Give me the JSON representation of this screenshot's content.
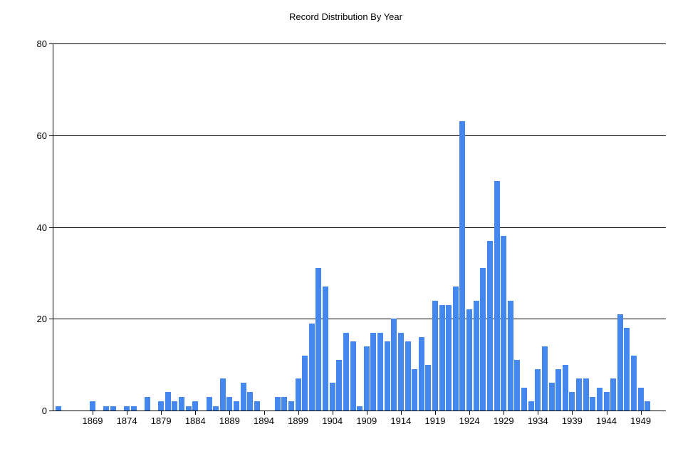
{
  "chart_data": {
    "type": "bar",
    "title": "Record Distribution By Year",
    "xlabel": "",
    "ylabel": "",
    "ylim": [
      0,
      80
    ],
    "yticks": [
      0,
      20,
      40,
      60,
      80
    ],
    "x_tick_labels": [
      "1869",
      "1874",
      "1879",
      "1884",
      "1889",
      "1894",
      "1899",
      "1904",
      "1909",
      "1914",
      "1919",
      "1924",
      "1929",
      "1934",
      "1939",
      "1944",
      "1949"
    ],
    "grid": "horizontal",
    "legend_position": "none",
    "years": [
      1864,
      1865,
      1866,
      1867,
      1868,
      1869,
      1870,
      1871,
      1872,
      1873,
      1874,
      1875,
      1876,
      1877,
      1878,
      1879,
      1880,
      1881,
      1882,
      1883,
      1884,
      1885,
      1886,
      1887,
      1888,
      1889,
      1890,
      1891,
      1892,
      1893,
      1894,
      1895,
      1896,
      1897,
      1898,
      1899,
      1900,
      1901,
      1902,
      1903,
      1904,
      1905,
      1906,
      1907,
      1908,
      1909,
      1910,
      1911,
      1912,
      1913,
      1914,
      1915,
      1916,
      1917,
      1918,
      1919,
      1920,
      1921,
      1922,
      1923,
      1924,
      1925,
      1926,
      1927,
      1928,
      1929,
      1930,
      1931,
      1932,
      1933,
      1934,
      1935,
      1936,
      1937,
      1938,
      1939,
      1940,
      1941,
      1942,
      1943,
      1944,
      1945,
      1946,
      1947,
      1948,
      1949,
      1950
    ],
    "values": [
      1,
      0,
      0,
      0,
      0,
      2,
      0,
      1,
      1,
      0,
      1,
      1,
      0,
      3,
      0,
      2,
      4,
      2,
      3,
      1,
      2,
      0,
      3,
      1,
      7,
      3,
      2,
      6,
      4,
      2,
      0,
      0,
      3,
      3,
      2,
      7,
      12,
      19,
      31,
      27,
      6,
      11,
      17,
      15,
      1,
      14,
      17,
      17,
      15,
      20,
      17,
      15,
      9,
      16,
      10,
      24,
      23,
      23,
      27,
      63,
      22,
      24,
      31,
      37,
      50,
      38,
      24,
      11,
      5,
      2,
      9,
      14,
      6,
      9,
      10,
      4,
      7,
      7,
      3,
      5,
      4,
      7,
      21,
      18,
      12,
      5,
      2
    ]
  },
  "colors": {
    "bar": "#4387ef",
    "axis": "#000000",
    "text": "#000000",
    "background": "#ffffff"
  }
}
